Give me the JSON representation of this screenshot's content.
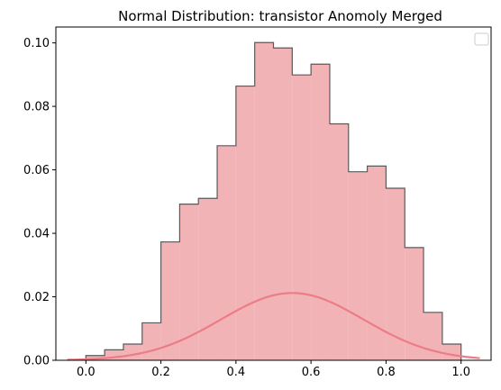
{
  "chart_data": {
    "type": "histogram",
    "title": "Normal Distribution: transistor Anomoly Merged",
    "xlabel": "",
    "ylabel": "",
    "xlim": [
      -0.08,
      1.08
    ],
    "ylim": [
      0,
      0.105
    ],
    "x_ticks": [
      0.0,
      0.2,
      0.4,
      0.6,
      0.8,
      1.0
    ],
    "x_tick_labels": [
      "0.0",
      "0.2",
      "0.4",
      "0.6",
      "0.8",
      "1.0"
    ],
    "y_ticks": [
      0.0,
      0.02,
      0.04,
      0.06,
      0.08,
      0.1
    ],
    "y_tick_labels": [
      "0.00",
      "0.02",
      "0.04",
      "0.06",
      "0.08",
      "0.10"
    ],
    "grid": false,
    "legend": "top-right",
    "bins": {
      "edges": [
        0.0,
        0.05,
        0.1,
        0.15,
        0.2,
        0.25,
        0.3,
        0.35,
        0.4,
        0.45,
        0.5,
        0.55,
        0.6,
        0.65,
        0.7,
        0.75,
        0.8,
        0.85,
        0.9,
        0.95,
        1.0
      ],
      "values": [
        0.0015,
        0.0033,
        0.0051,
        0.0118,
        0.0373,
        0.0492,
        0.051,
        0.0676,
        0.0864,
        0.1001,
        0.0984,
        0.0899,
        0.0933,
        0.0745,
        0.0594,
        0.0612,
        0.0542,
        0.0355,
        0.0151,
        0.0051
      ]
    },
    "curve": {
      "type": "line",
      "mean": 0.55,
      "std": 0.19,
      "peak": 0.0212,
      "x_range": [
        -0.05,
        1.05
      ]
    },
    "colors": {
      "hist_fill": "#f2b3b7",
      "hist_edge": "#5a5a5a",
      "curve": "#ec7c85",
      "axes": "#000000"
    }
  }
}
